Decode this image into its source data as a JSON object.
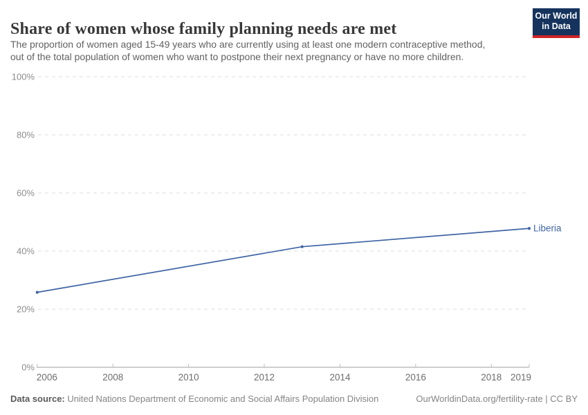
{
  "header": {
    "title": "Share of women whose family planning needs are met",
    "subtitle_line1": "The proportion of women aged 15-49 years who are currently using at least one modern contraceptive method,",
    "subtitle_line2": "out of the total population of women who want to postpone their next pregnancy or have no more children.",
    "logo": {
      "line1": "Our World",
      "line2": "in Data",
      "bg_color": "#15335d",
      "accent_color": "#cf2426"
    }
  },
  "chart_data": {
    "type": "line",
    "title": "Share of women whose family planning needs are met",
    "xlabel": "",
    "ylabel": "",
    "xlim": [
      2006,
      2019
    ],
    "ylim": [
      0,
      100
    ],
    "x_ticks": [
      2006,
      2008,
      2010,
      2012,
      2014,
      2016,
      2018,
      2019
    ],
    "y_ticks": [
      0,
      20,
      40,
      60,
      80,
      100
    ],
    "y_tick_suffix": "%",
    "grid": "horizontal-dashed",
    "grid_color": "#dcdcdc",
    "axis_color": "#9e9e9e",
    "tick_color": "#bdbdbd",
    "legend_position": "end-of-line-label",
    "series": [
      {
        "name": "Liberia",
        "color": "#3e64a4",
        "points": [
          {
            "x": 2006,
            "y": 25.8
          },
          {
            "x": 2013,
            "y": 41.5
          },
          {
            "x": 2019,
            "y": 47.8
          }
        ]
      }
    ]
  },
  "footer": {
    "source_label": "Data source:",
    "source_text": " United Nations Department of Economic and Social Affairs Population Division",
    "attribution": "OurWorldinData.org/fertility-rate | CC BY"
  }
}
